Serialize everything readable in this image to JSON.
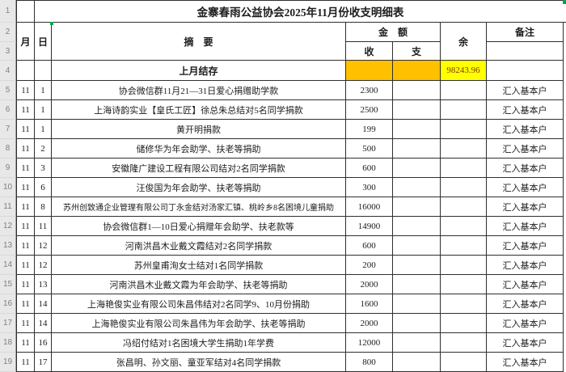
{
  "title": "金寨春雨公益协会2025年11月份收支明细表",
  "headers": {
    "month": "月",
    "day": "日",
    "summary": "摘　要",
    "amount": "金　额",
    "income": "收",
    "expense": "支",
    "balance": "余",
    "note": "备注"
  },
  "opening": {
    "summary": "上月结存",
    "income": "",
    "expense": "",
    "balance": "98243.96",
    "note": ""
  },
  "gutter": [
    "1",
    "2",
    "3",
    "4",
    "5",
    "6",
    "7",
    "8",
    "9",
    "10",
    "11",
    "12",
    "13",
    "14",
    "15",
    "16",
    "17",
    "18",
    "19"
  ],
  "rows": [
    {
      "month": "11",
      "day": "1",
      "summary": "协会微信群11月21—31日爱心捐赠助学款",
      "income": "2300",
      "expense": "",
      "balance": "",
      "note": "汇入基本户"
    },
    {
      "month": "11",
      "day": "1",
      "summary": "上海诗韵实业【皇氏工匠】徐总朱总结对5名同学捐款",
      "income": "2500",
      "expense": "",
      "balance": "",
      "note": "汇入基本户"
    },
    {
      "month": "11",
      "day": "1",
      "summary": "黄开明捐款",
      "income": "199",
      "expense": "",
      "balance": "",
      "note": "汇入基本户"
    },
    {
      "month": "11",
      "day": "2",
      "summary": "储修华为年会助学、扶老等捐助",
      "income": "500",
      "expense": "",
      "balance": "",
      "note": "汇入基本户"
    },
    {
      "month": "11",
      "day": "3",
      "summary": "安徽隆广建设工程有限公司结对2名同学捐款",
      "income": "600",
      "expense": "",
      "balance": "",
      "note": "汇入基本户"
    },
    {
      "month": "11",
      "day": "6",
      "summary": "汪俊国为年会助学、扶老等捐助",
      "income": "300",
      "expense": "",
      "balance": "",
      "note": "汇入基本户"
    },
    {
      "month": "11",
      "day": "8",
      "summary": "苏州创致通企业管理有限公司丁永金结对汤家汇镇、桃岭乡8名困境儿童捐助",
      "income": "16000",
      "expense": "",
      "balance": "",
      "note": "汇入基本户"
    },
    {
      "month": "11",
      "day": "11",
      "summary": "协会微信群1—10日爱心捐赠年会助学、扶老款等",
      "income": "14900",
      "expense": "",
      "balance": "",
      "note": "汇入基本户"
    },
    {
      "month": "11",
      "day": "12",
      "summary": "河南洪昌木业戴文霞结对2名同学捐款",
      "income": "600",
      "expense": "",
      "balance": "",
      "note": "汇入基本户"
    },
    {
      "month": "11",
      "day": "12",
      "summary": "苏州皇甫洵女士结对1名同学捐款",
      "income": "200",
      "expense": "",
      "balance": "",
      "note": "汇入基本户"
    },
    {
      "month": "11",
      "day": "13",
      "summary": "河南洪昌木业戴文霞为年会助学、扶老等捐助",
      "income": "2000",
      "expense": "",
      "balance": "",
      "note": "汇入基本户"
    },
    {
      "month": "11",
      "day": "14",
      "summary": "上海艳俊实业有限公司朱昌伟结对2名同学9、10月份捐助",
      "income": "1600",
      "expense": "",
      "balance": "",
      "note": "汇入基本户"
    },
    {
      "month": "11",
      "day": "14",
      "summary": "上海艳俊实业有限公司朱昌伟为年会助学、扶老等捐助",
      "income": "2000",
      "expense": "",
      "balance": "",
      "note": "汇入基本户"
    },
    {
      "month": "11",
      "day": "16",
      "summary": "冯绍付结对1名困境大学生捐助1年学费",
      "income": "12000",
      "expense": "",
      "balance": "",
      "note": "汇入基本户"
    },
    {
      "month": "11",
      "day": "17",
      "summary": "张昌明、孙文丽、童亚军结对4名同学捐款",
      "income": "800",
      "expense": "",
      "balance": "",
      "note": "汇入基本户"
    }
  ],
  "colors": {
    "opening_fill": "#FFC000",
    "balance_fill": "#FFFF00",
    "balance_text": "#833C00",
    "marker_green": "#00A550"
  }
}
